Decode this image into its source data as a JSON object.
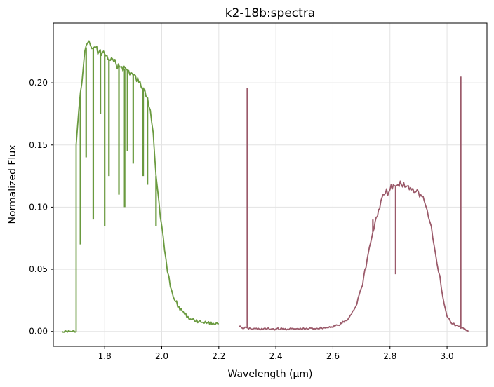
{
  "chart_data": {
    "type": "line",
    "title": "k2-18b:spectra",
    "xlabel": "Wavelength (μm)",
    "ylabel": "Normalized Flux",
    "xlim": [
      1.62,
      3.14
    ],
    "ylim": [
      -0.012,
      0.248
    ],
    "grid": true,
    "x_ticks": [
      1.6,
      1.8,
      2.0,
      2.2,
      2.4,
      2.6,
      2.8,
      3.0
    ],
    "x_tick_labels": [
      "1.6",
      "1.8",
      "2.0",
      "2.2",
      "2.4",
      "2.6",
      "2.8",
      "3.0"
    ],
    "y_ticks": [
      0.0,
      0.05,
      0.1,
      0.15,
      0.2
    ],
    "y_tick_labels": [
      "0.00",
      "0.05",
      "0.10",
      "0.15",
      "0.20"
    ],
    "series": [
      {
        "color": "#6a9a3f",
        "x": [
          1.65,
          1.7,
          1.7,
          1.71,
          1.72,
          1.73,
          1.74,
          1.75,
          1.76,
          1.78,
          1.8,
          1.82,
          1.84,
          1.86,
          1.88,
          1.9,
          1.92,
          1.94,
          1.95,
          1.96,
          1.97,
          1.98,
          1.99,
          2.0,
          2.01,
          2.02,
          2.03,
          2.04,
          2.06,
          2.08,
          2.1,
          2.13,
          2.16,
          2.2
        ],
        "y": [
          0.0,
          0.0,
          0.15,
          0.18,
          0.2,
          0.225,
          0.232,
          0.23,
          0.228,
          0.225,
          0.223,
          0.218,
          0.215,
          0.213,
          0.21,
          0.206,
          0.2,
          0.195,
          0.188,
          0.178,
          0.16,
          0.125,
          0.105,
          0.085,
          0.065,
          0.048,
          0.036,
          0.028,
          0.02,
          0.014,
          0.01,
          0.008,
          0.007,
          0.006
        ],
        "spikes": [
          {
            "x": 1.715,
            "y": 0.07
          },
          {
            "x": 1.735,
            "y": 0.14
          },
          {
            "x": 1.76,
            "y": 0.09
          },
          {
            "x": 1.785,
            "y": 0.175
          },
          {
            "x": 1.8,
            "y": 0.085
          },
          {
            "x": 1.815,
            "y": 0.125
          },
          {
            "x": 1.85,
            "y": 0.11
          },
          {
            "x": 1.87,
            "y": 0.1
          },
          {
            "x": 1.88,
            "y": 0.145
          },
          {
            "x": 1.9,
            "y": 0.135
          },
          {
            "x": 1.935,
            "y": 0.125
          },
          {
            "x": 1.95,
            "y": 0.118
          },
          {
            "x": 1.98,
            "y": 0.085
          }
        ]
      },
      {
        "color": "#9b5a6a",
        "x": [
          2.27,
          2.28,
          2.32,
          2.4,
          2.5,
          2.58,
          2.62,
          2.65,
          2.68,
          2.7,
          2.72,
          2.74,
          2.76,
          2.78,
          2.8,
          2.82,
          2.84,
          2.86,
          2.88,
          2.9,
          2.92,
          2.93,
          2.94,
          2.95,
          2.96,
          2.97,
          2.98,
          2.99,
          3.0,
          3.02,
          3.04,
          3.06,
          3.075
        ],
        "y": [
          0.004,
          0.003,
          0.002,
          0.002,
          0.002,
          0.003,
          0.005,
          0.009,
          0.02,
          0.035,
          0.058,
          0.08,
          0.098,
          0.11,
          0.114,
          0.117,
          0.118,
          0.117,
          0.115,
          0.112,
          0.105,
          0.098,
          0.088,
          0.075,
          0.062,
          0.048,
          0.035,
          0.022,
          0.012,
          0.006,
          0.004,
          0.002,
          0.0
        ],
        "spikes": [
          {
            "x": 2.3,
            "y": 0.196
          },
          {
            "x": 2.74,
            "y": 0.09
          },
          {
            "x": 2.82,
            "y": 0.046
          },
          {
            "x": 3.048,
            "y": 0.205
          }
        ]
      }
    ]
  }
}
